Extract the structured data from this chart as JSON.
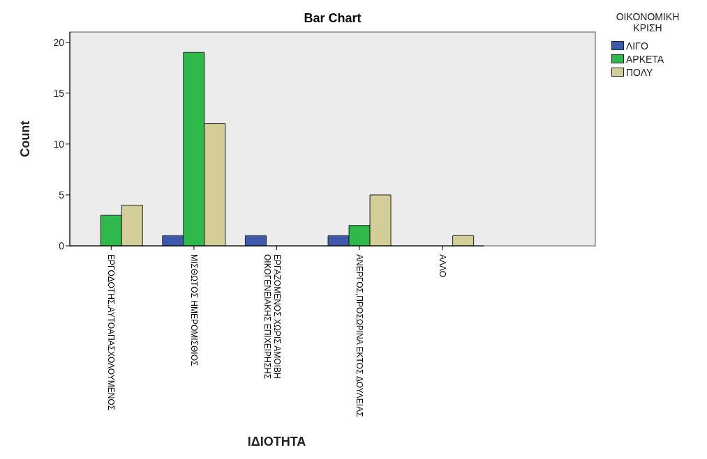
{
  "chart_data": {
    "type": "bar",
    "title": "Bar Chart",
    "xlabel": "ΙΔΙΟΤΗΤΑ",
    "ylabel": "Count",
    "legend_title": "ΟΙΚΟΝΟΜΙΚΗ ΚΡΙΣΗ",
    "categories": [
      "ΕΡΓΟΔΟΤΗΣ,ΑΥΤΟΑΠΑΣΧΟΛΟΥΜΕΝΟΣ",
      "ΜΙΣΘΩΤΟΣ ΗΜΕΡΟΜΙΣΘΙΟΣ",
      "ΕΡΓΑΖΟΜΕΝΟΣ ΧΩΡΙΣ ΑΜΟΙΒΗ\nΟΙΚΟΓΕΝΕΙΑΚΗΣ ΕΠΙΧΕΙΡΗΣΗΣ",
      "ΑΝΕΡΓΟΣ,ΠΡΟΣΩΡΙΝΑ ΕΚΤΟΣ ΔΟΥΛΕΙΑΣ",
      "ΑΛΛΟ"
    ],
    "series": [
      {
        "name": "ΛΙΓΟ",
        "color": "#3e58ac",
        "values": [
          0,
          1,
          1,
          1,
          0
        ]
      },
      {
        "name": "ΑΡΚΕΤΑ",
        "color": "#2eb94a",
        "values": [
          3,
          19,
          0,
          2,
          0
        ]
      },
      {
        "name": "ΠΟΛΥ",
        "color": "#d3ce97",
        "values": [
          4,
          12,
          0,
          5,
          1
        ]
      }
    ],
    "ylim": [
      0,
      21
    ],
    "yticks": [
      0,
      5,
      10,
      15,
      20
    ],
    "legend": "top right"
  }
}
